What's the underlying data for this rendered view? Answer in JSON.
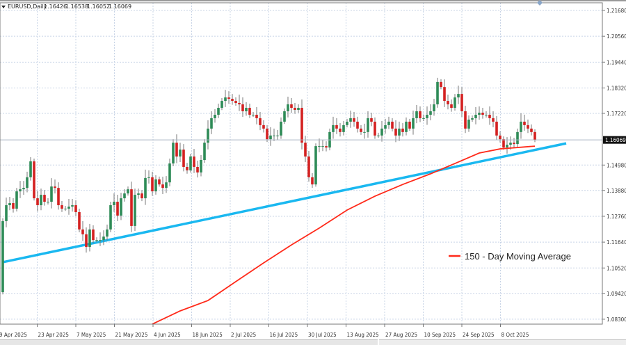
{
  "chart_data": {
    "type": "candlestick",
    "symbol_line": "EURUSD,Daily",
    "ohlc_header": [
      "1.16426",
      "1.16538",
      "1.16052",
      "1.16069"
    ],
    "first_open": 1.0947,
    "closes": [
      1.1255,
      1.1324,
      1.1333,
      1.1309,
      1.1384,
      1.1393,
      1.1399,
      1.1445,
      1.1514,
      1.1354,
      1.1324,
      1.1369,
      1.1339,
      1.1339,
      1.1405,
      1.1399,
      1.1324,
      1.1309,
      1.1309,
      1.1318,
      1.1324,
      1.1294,
      1.1219,
      1.1198,
      1.1143,
      1.1219,
      1.1173,
      1.1173,
      1.1173,
      1.1188,
      1.1219,
      1.1324,
      1.1339,
      1.1279,
      1.1354,
      1.1375,
      1.1393,
      1.1234,
      1.1369,
      1.1375,
      1.1354,
      1.1442,
      1.1445,
      1.1384,
      1.1436,
      1.1414,
      1.1399,
      1.1423,
      1.1505,
      1.1595,
      1.1535,
      1.1565,
      1.149,
      1.1475,
      1.1535,
      1.149,
      1.1466,
      1.152,
      1.1595,
      1.1656,
      1.1701,
      1.1716,
      1.1746,
      1.1776,
      1.1791,
      1.1785,
      1.1776,
      1.1767,
      1.1761,
      1.1731,
      1.1746,
      1.1716,
      1.1716,
      1.1701,
      1.1671,
      1.1656,
      1.161,
      1.1626,
      1.1626,
      1.1626,
      1.1686,
      1.1731,
      1.1761,
      1.1746,
      1.1737,
      1.1746,
      1.1595,
      1.1535,
      1.1445,
      1.1414,
      1.158,
      1.158,
      1.158,
      1.1574,
      1.1641,
      1.1671,
      1.1656,
      1.1641,
      1.1671,
      1.1686,
      1.1701,
      1.1686,
      1.1656,
      1.1641,
      1.1641,
      1.1701,
      1.1686,
      1.1626,
      1.1626,
      1.1656,
      1.1671,
      1.1686,
      1.1656,
      1.1626,
      1.1656,
      1.1641,
      1.1686,
      1.1656,
      1.1701,
      1.1731,
      1.1701,
      1.1701,
      1.1716,
      1.1731,
      1.1761,
      1.1858,
      1.1836,
      1.1776,
      1.1761,
      1.1746,
      1.1791,
      1.1806,
      1.1731,
      1.1656,
      1.1695,
      1.1701,
      1.1716,
      1.1725,
      1.1716,
      1.1716,
      1.1701,
      1.1686,
      1.1626,
      1.161,
      1.1574,
      1.1586,
      1.1595,
      1.1589,
      1.1641,
      1.1686,
      1.1671,
      1.1656,
      1.1641,
      1.16069
    ],
    "moving_average": {
      "name": "150 - Day Moving Average",
      "color": "#ff2a1a",
      "points": [
        {
          "bar": 43,
          "value": 1.0809
        },
        {
          "bar": 51,
          "value": 1.0866
        },
        {
          "bar": 59,
          "value": 1.0911
        },
        {
          "bar": 67,
          "value": 1.0993
        },
        {
          "bar": 75,
          "value": 1.1074
        },
        {
          "bar": 83,
          "value": 1.1152
        },
        {
          "bar": 91,
          "value": 1.1225
        },
        {
          "bar": 99,
          "value": 1.1303
        },
        {
          "bar": 107,
          "value": 1.1363
        },
        {
          "bar": 115,
          "value": 1.1414
        },
        {
          "bar": 123,
          "value": 1.146
        },
        {
          "bar": 131,
          "value": 1.1511
        },
        {
          "bar": 137,
          "value": 1.155
        },
        {
          "bar": 143,
          "value": 1.1568
        },
        {
          "bar": 153,
          "value": 1.158
        }
      ]
    },
    "trendline": {
      "color": "#1ab8f0",
      "start": {
        "bar": 0,
        "value": 1.1077
      },
      "end": {
        "bar": 162,
        "value": 1.1592
      }
    },
    "current_price": "1.16069",
    "y_ticks": [
      "1.21680",
      "1.20560",
      "1.19440",
      "1.18320",
      "1.17220",
      "1.14980",
      "1.13880",
      "1.12760",
      "1.11640",
      "1.10520",
      "1.09420",
      "1.08300"
    ],
    "x_ticks": [
      "9 Apr 2025",
      "23 Apr 2025",
      "7 May 2025",
      "21 May 2025",
      "4 Jun 2025",
      "18 Jun 2025",
      "2 Jul 2025",
      "16 Jul 2025",
      "30 Jul 2025",
      "13 Aug 2025",
      "27 Aug 2025",
      "10 Sep 2025",
      "24 Sep 2025",
      "8 Oct 2025"
    ],
    "colors": {
      "bull": "#2e8b57",
      "bear": "#d42020",
      "grid": "#c8d4e6"
    },
    "grid": true,
    "legend_position": "bottom-right"
  }
}
